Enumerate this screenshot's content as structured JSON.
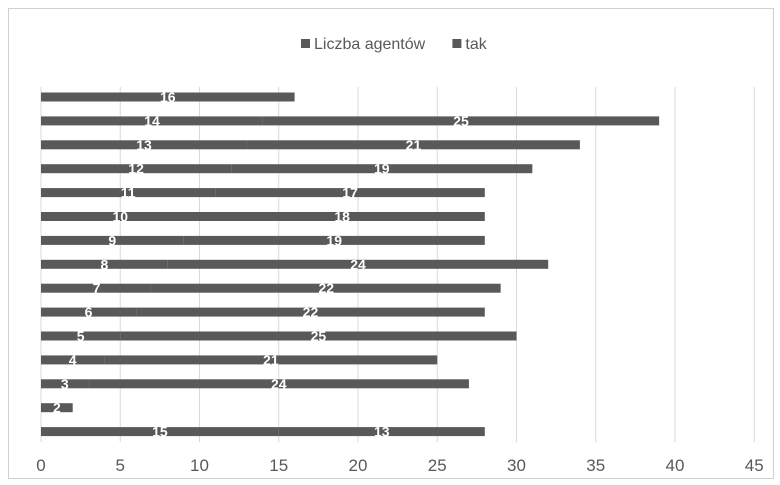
{
  "chart_data": {
    "type": "bar",
    "orientation": "horizontal",
    "stacked": true,
    "title": "",
    "xlabel": "",
    "ylabel": "",
    "xlim": [
      0,
      45
    ],
    "xticks": [
      0,
      5,
      10,
      15,
      20,
      25,
      30,
      35,
      40,
      45
    ],
    "grid": true,
    "legend_position": "top",
    "colors": {
      "bar": "#595959",
      "label": "#ffffff",
      "grid": "#d9d9d9",
      "axis_text": "#595959"
    },
    "series": [
      {
        "name": "Liczba agentów",
        "values": [
          16,
          14,
          13,
          12,
          11,
          10,
          9,
          8,
          7,
          6,
          5,
          4,
          3,
          0,
          15
        ]
      },
      {
        "name": "tak",
        "values": [
          0,
          25,
          21,
          19,
          17,
          18,
          19,
          24,
          22,
          22,
          25,
          21,
          24,
          2,
          13
        ]
      }
    ]
  }
}
